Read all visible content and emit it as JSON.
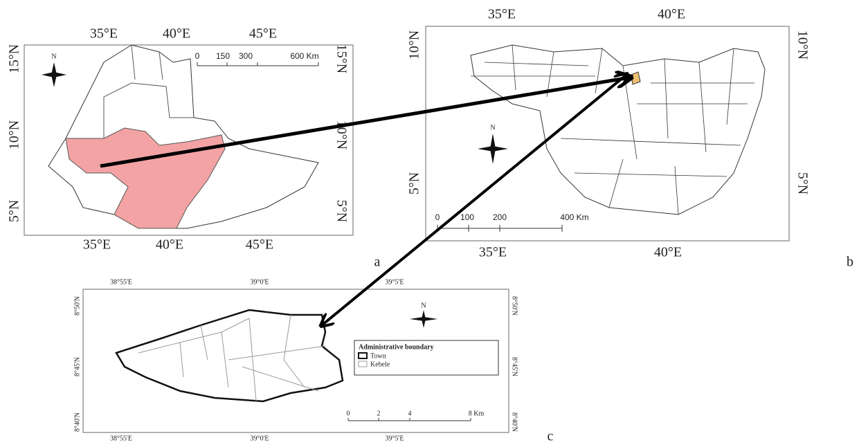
{
  "panel_a": {
    "label": "a",
    "top_ticks": [
      "35°E",
      "40°E",
      "45°E"
    ],
    "bottom_ticks": [
      "35°E",
      "40°E",
      "45°E"
    ],
    "left_ticks": [
      "15°N",
      "10°N",
      "5°N"
    ],
    "right_ticks": [
      "15°N",
      "10°N",
      "5°N"
    ],
    "scale": [
      "0",
      "150",
      "300",
      "600 Km"
    ],
    "north": "N"
  },
  "panel_b": {
    "label": "b",
    "top_ticks": [
      "35°E",
      "40°E"
    ],
    "bottom_ticks": [
      "35°E",
      "40°E"
    ],
    "left_ticks": [
      "10°N",
      "5°N"
    ],
    "right_ticks": [
      "10°N",
      "5°N"
    ],
    "scale": [
      "0",
      "100",
      "200",
      "400 Km"
    ],
    "north": "N"
  },
  "panel_c": {
    "label": "c",
    "top_ticks": [
      "38°55'E",
      "39°0'E",
      "39°5'E"
    ],
    "bottom_ticks": [
      "38°55'E",
      "39°0'E",
      "39°5'E"
    ],
    "left_ticks": [
      "8°50'N",
      "8°45'N",
      "8°40'N"
    ],
    "right_ticks": [
      "8°50'N",
      "8°45'N",
      "8°40'N"
    ],
    "scale": [
      "0",
      "2",
      "4",
      "8 Km"
    ],
    "north": "N",
    "legend": {
      "title": "Administrative boundary",
      "items": [
        "Town",
        "Kebele"
      ]
    }
  }
}
